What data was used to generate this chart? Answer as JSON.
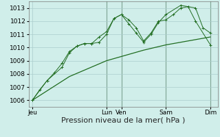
{
  "background_color": "#d0eeea",
  "grid_color": "#aacccc",
  "line_color": "#1e6b1e",
  "ylim": [
    1005.5,
    1013.5
  ],
  "yticks": [
    1006,
    1007,
    1008,
    1009,
    1010,
    1011,
    1012,
    1013
  ],
  "xlabel": "Pression niveau de la mer( hPa )",
  "xlabel_fontsize": 8,
  "tick_fontsize": 6.5,
  "day_labels": [
    "Jeu",
    "Lun",
    "Ven",
    "Sam",
    "Dim"
  ],
  "day_positions": [
    0,
    60,
    72,
    108,
    144
  ],
  "xlim": [
    -3,
    150
  ],
  "line1_x": [
    0,
    6,
    12,
    18,
    24,
    30,
    36,
    42,
    48,
    54,
    60,
    66,
    72,
    78,
    84,
    90,
    96,
    102,
    108,
    114,
    120,
    126,
    132,
    138,
    144
  ],
  "line1_y": [
    1006.0,
    1006.8,
    1007.5,
    1008.1,
    1008.8,
    1009.7,
    1010.1,
    1010.3,
    1010.3,
    1010.4,
    1011.0,
    1012.2,
    1012.5,
    1012.1,
    1011.5,
    1010.5,
    1011.1,
    1012.0,
    1012.1,
    1012.5,
    1013.0,
    1013.1,
    1013.0,
    1011.5,
    1011.1
  ],
  "line2_x": [
    0,
    12,
    24,
    30,
    36,
    42,
    48,
    54,
    60,
    66,
    72,
    78,
    84,
    90,
    96,
    102,
    108,
    120,
    126,
    132,
    144
  ],
  "line2_y": [
    1006.0,
    1007.5,
    1008.5,
    1009.6,
    1010.1,
    1010.3,
    1010.3,
    1010.8,
    1011.2,
    1012.2,
    1012.5,
    1011.8,
    1011.1,
    1010.4,
    1011.0,
    1011.9,
    1012.5,
    1013.2,
    1013.1,
    1012.0,
    1010.2
  ],
  "line3_x": [
    0,
    30,
    60,
    90,
    108,
    126,
    144
  ],
  "line3_y": [
    1006.0,
    1007.8,
    1009.0,
    1009.8,
    1010.2,
    1010.5,
    1010.8
  ]
}
